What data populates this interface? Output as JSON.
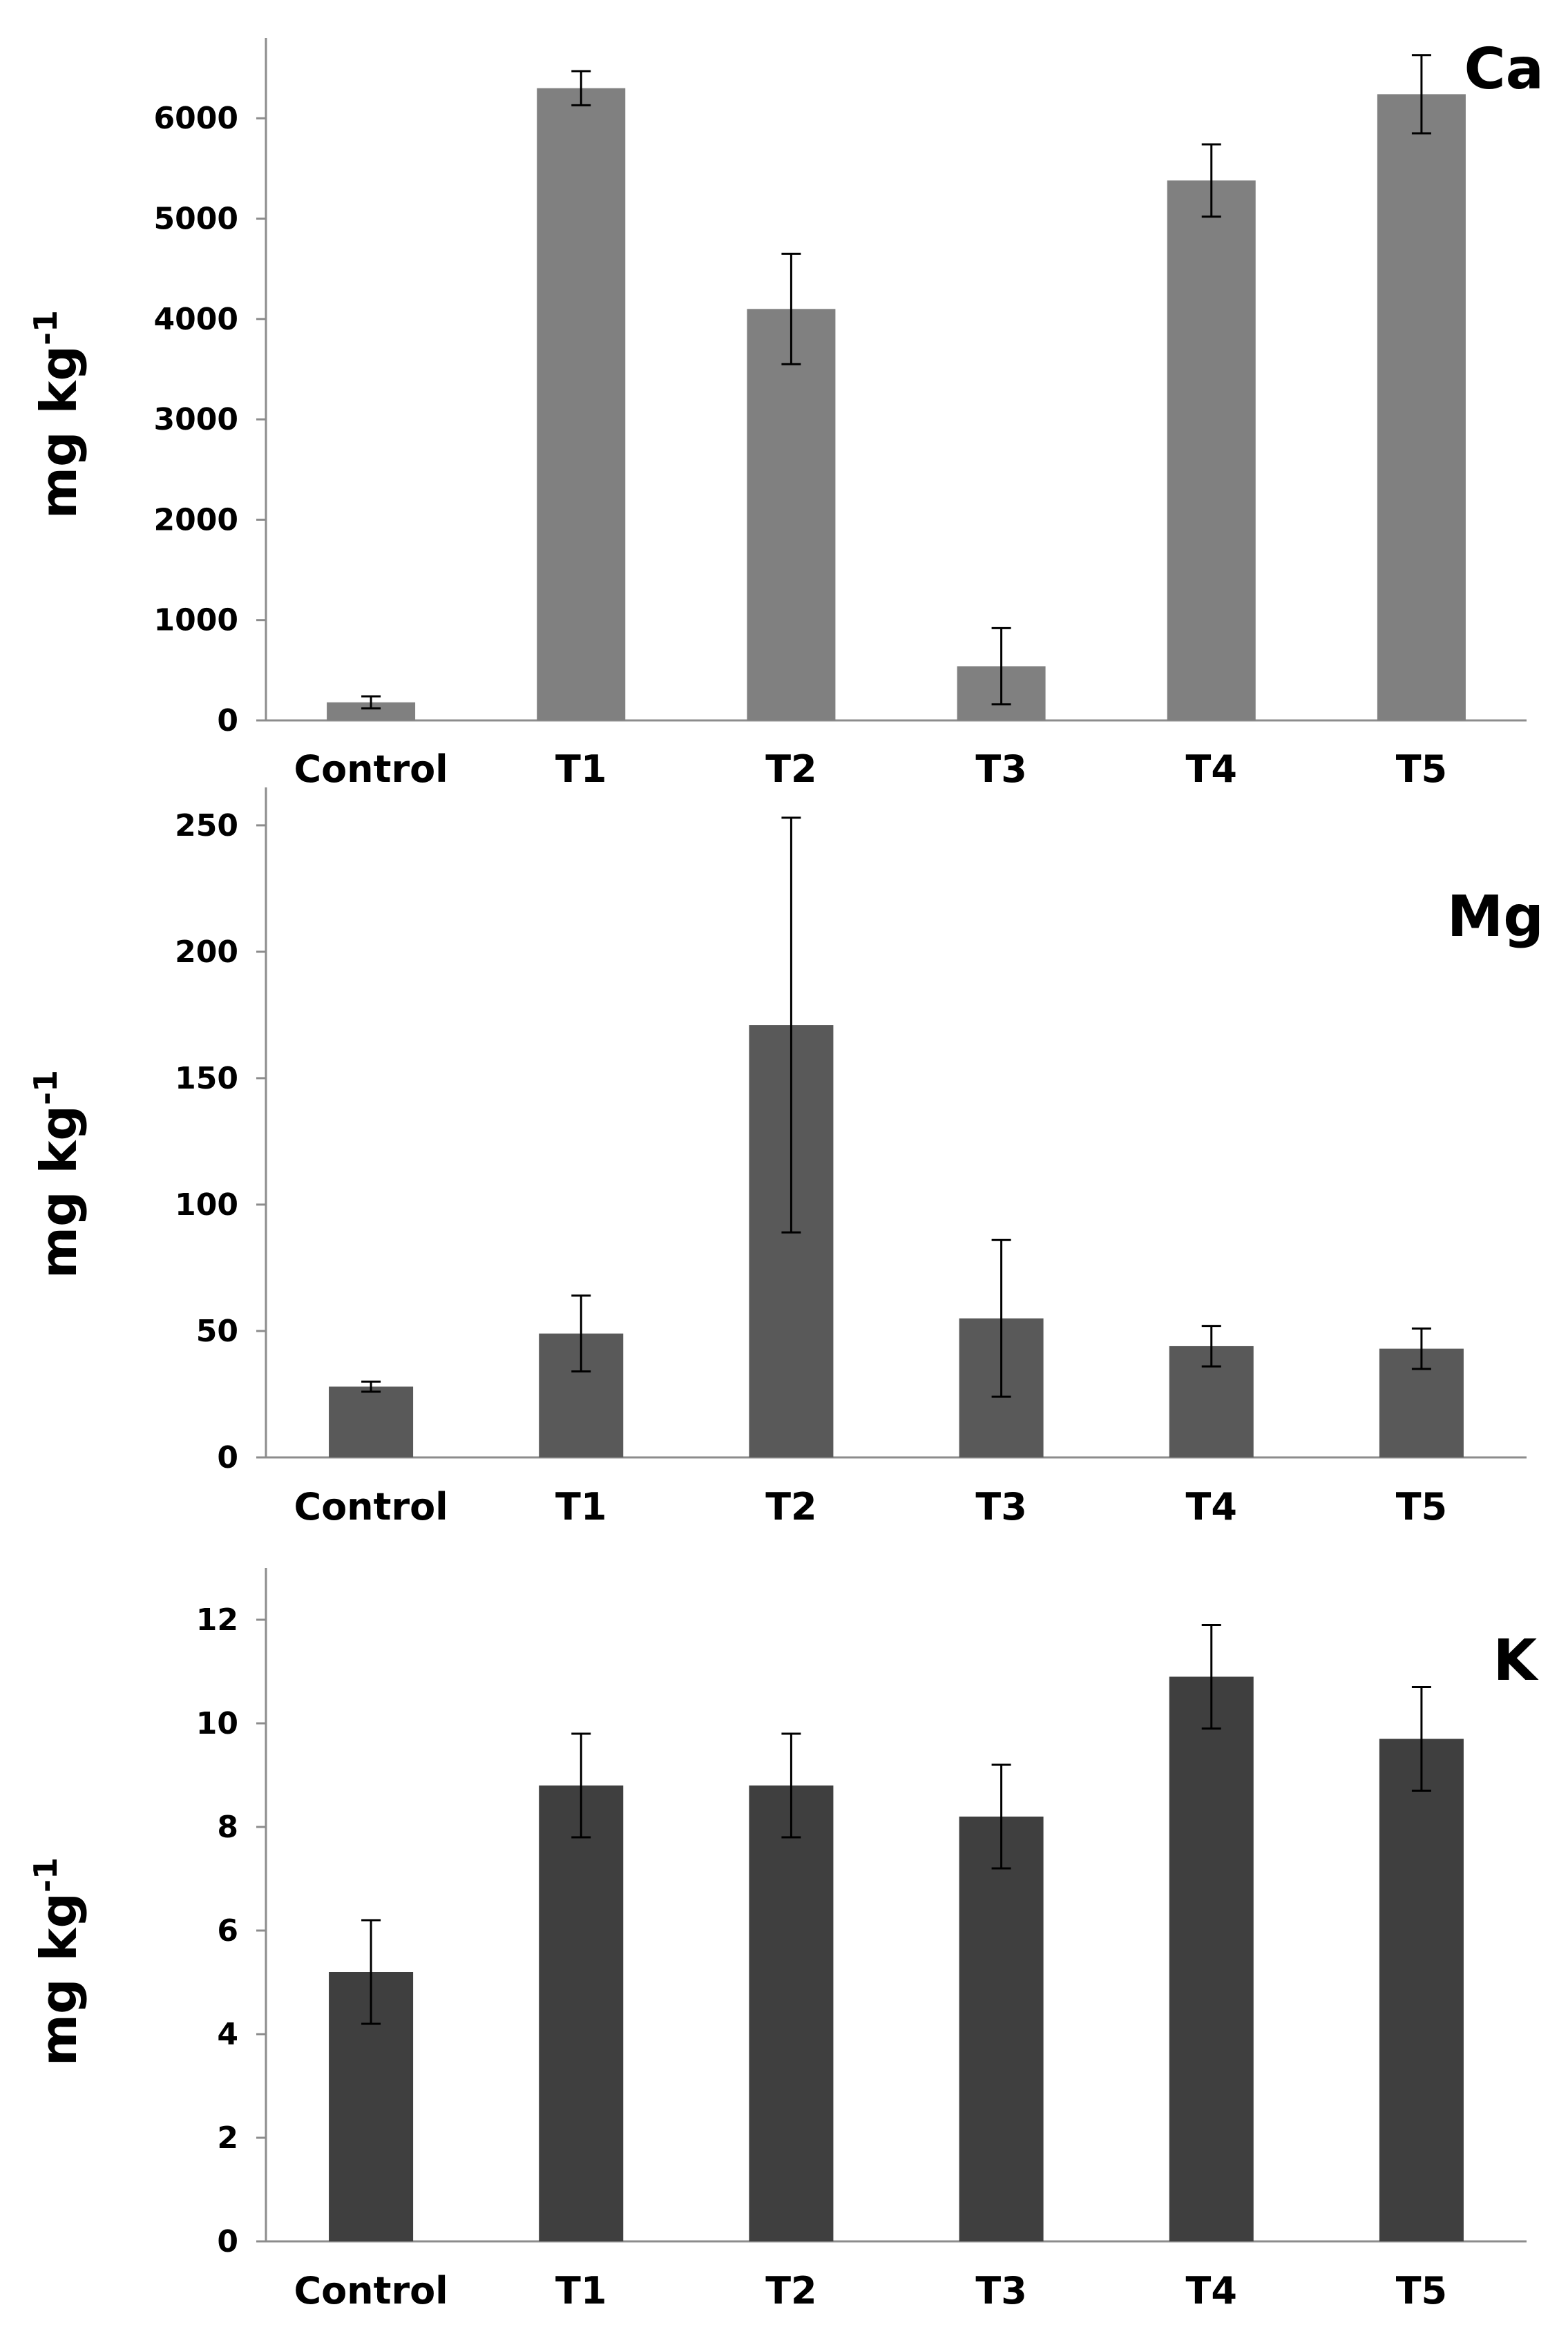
{
  "chart_data": [
    {
      "type": "bar",
      "title": "Ca",
      "ylabel": "mg kg",
      "ylabel_superscript": "-1",
      "categories": [
        "Control",
        "T1",
        "T2",
        "T3",
        "T4",
        "T5"
      ],
      "values": [
        180,
        6300,
        4100,
        540,
        5380,
        6240
      ],
      "errors": [
        60,
        170,
        550,
        380,
        360,
        390
      ],
      "ylim": [
        0,
        6800
      ],
      "yticks": [
        0,
        1000,
        2000,
        3000,
        4000,
        5000,
        6000
      ],
      "ytick_labels": [
        "0",
        "1000",
        "2000",
        "3000",
        "4000",
        "5000",
        "6000"
      ],
      "bar_color": "#808080",
      "grid": false
    },
    {
      "type": "bar",
      "title": "Mg",
      "ylabel": "mg kg",
      "ylabel_superscript": "-1",
      "categories": [
        "Control",
        "T1",
        "T2",
        "T3",
        "T4",
        "T5"
      ],
      "values": [
        28,
        49,
        171,
        55,
        44,
        43
      ],
      "errors": [
        2,
        15,
        82,
        31,
        8,
        8
      ],
      "ylim": [
        0,
        265
      ],
      "yticks": [
        0,
        50,
        100,
        150,
        200,
        250
      ],
      "ytick_labels": [
        "0",
        "50",
        "100",
        "150",
        "200",
        "250"
      ],
      "bar_color": "#595959",
      "grid": false
    },
    {
      "type": "bar",
      "title": "K",
      "ylabel": "mg kg",
      "ylabel_superscript": "-1",
      "categories": [
        "Control",
        "T1",
        "T2",
        "T3",
        "T4",
        "T5"
      ],
      "values": [
        5.2,
        8.8,
        8.8,
        8.2,
        10.9,
        9.7
      ],
      "errors": [
        1.0,
        1.0,
        1.0,
        1.0,
        1.0,
        1.0
      ],
      "ylim": [
        0,
        13
      ],
      "yticks": [
        0,
        2,
        4,
        6,
        8,
        10,
        12
      ],
      "ytick_labels": [
        "0",
        "2",
        "4",
        "6",
        "8",
        "10",
        "12"
      ],
      "bar_color": "#3f3f3f",
      "grid": false
    }
  ]
}
